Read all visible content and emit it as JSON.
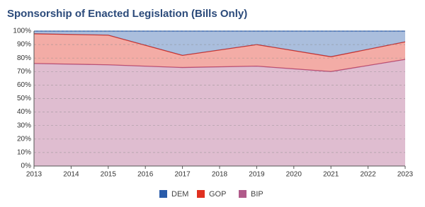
{
  "chart_data": {
    "type": "stacked-area",
    "title": "Sponsorship of Enacted Legislation (Bills Only)",
    "x": [
      2013,
      2015,
      2017,
      2019,
      2021,
      2023
    ],
    "series": [
      {
        "name": "BIP",
        "color": "#b05a8a",
        "values": [
          76,
          75,
          73,
          74,
          70,
          79
        ]
      },
      {
        "name": "GOP",
        "color": "#e03020",
        "values": [
          22,
          22,
          9,
          16,
          11,
          13
        ]
      },
      {
        "name": "DEM",
        "color": "#2a5caa",
        "values": [
          2,
          3,
          18,
          10,
          19,
          8
        ]
      }
    ],
    "xlim": [
      2013,
      2023
    ],
    "xticks": [
      2013,
      2014,
      2015,
      2016,
      2017,
      2018,
      2019,
      2020,
      2021,
      2022,
      2023
    ],
    "ylim": [
      0,
      100
    ],
    "yticks": [
      {
        "value": 0,
        "label": "0%"
      },
      {
        "value": 10,
        "label": "10%"
      },
      {
        "value": 20,
        "label": "20%"
      },
      {
        "value": 30,
        "label": "30%"
      },
      {
        "value": 40,
        "label": "40%"
      },
      {
        "value": 50,
        "label": "50%"
      },
      {
        "value": 60,
        "label": "60%"
      },
      {
        "value": 70,
        "label": "70%"
      },
      {
        "value": 80,
        "label": "80%"
      },
      {
        "value": 90,
        "label": "90%"
      },
      {
        "value": 100,
        "label": "100%"
      }
    ],
    "grid": true,
    "legend": "bottom"
  }
}
